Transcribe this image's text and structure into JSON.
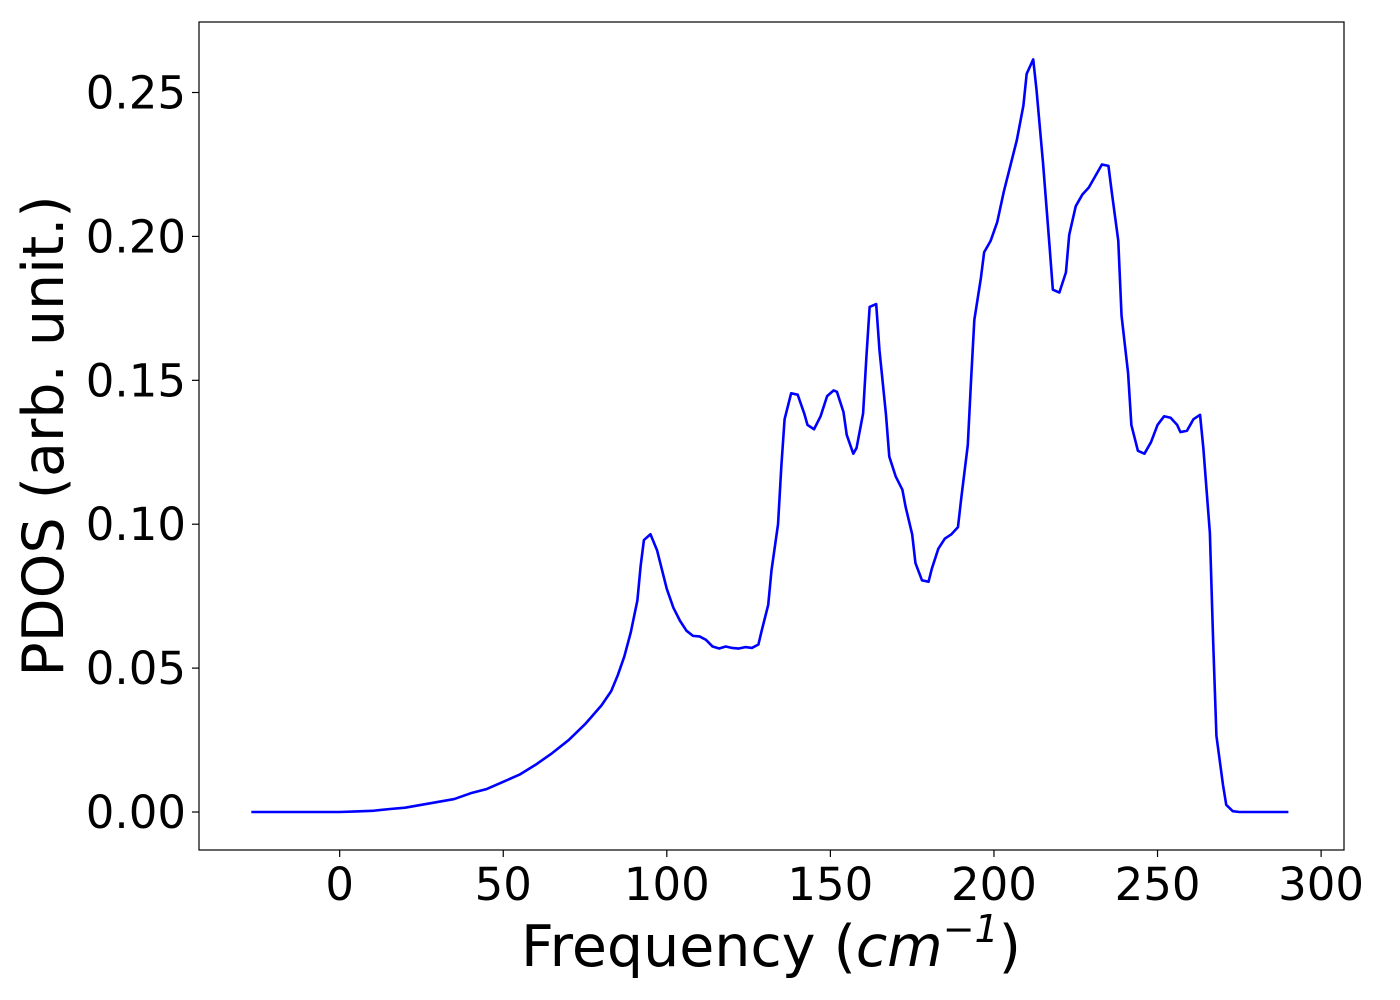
{
  "chart_data": {
    "type": "line",
    "xlabel": "Frequency (cm⁻¹)",
    "xlabel_parts": {
      "text": "Frequency (",
      "var": "cm",
      "exp": "−1",
      "close": ")"
    },
    "ylabel": "PDOS (arb. unit.)",
    "xlim": [
      -43,
      307
    ],
    "ylim": [
      -0.0132,
      0.2745
    ],
    "x_ticks": [
      0,
      50,
      100,
      150,
      200,
      250,
      300
    ],
    "x_tick_labels": [
      "0",
      "50",
      "100",
      "150",
      "200",
      "250",
      "300"
    ],
    "y_ticks": [
      0.0,
      0.05,
      0.1,
      0.15,
      0.2,
      0.25
    ],
    "y_tick_labels": [
      "0.00",
      "0.05",
      "0.10",
      "0.15",
      "0.20",
      "0.25"
    ],
    "grid": false,
    "series": [
      {
        "color": "#0000ff",
        "points": [
          [
            -27,
            0.0
          ],
          [
            -10,
            0.0
          ],
          [
            0,
            0.0
          ],
          [
            5,
            0.0002
          ],
          [
            10,
            0.0004
          ],
          [
            15,
            0.001
          ],
          [
            20,
            0.0015
          ],
          [
            25,
            0.0025
          ],
          [
            30,
            0.0035
          ],
          [
            35,
            0.0045
          ],
          [
            40,
            0.0065
          ],
          [
            45,
            0.008
          ],
          [
            50,
            0.0105
          ],
          [
            55,
            0.013
          ],
          [
            60,
            0.0165
          ],
          [
            65,
            0.0205
          ],
          [
            70,
            0.025
          ],
          [
            75,
            0.0305
          ],
          [
            80,
            0.037
          ],
          [
            83,
            0.042
          ],
          [
            85,
            0.0475
          ],
          [
            87,
            0.054
          ],
          [
            89,
            0.0625
          ],
          [
            91,
            0.0735
          ],
          [
            92,
            0.0855
          ],
          [
            93,
            0.0945
          ],
          [
            95,
            0.0965
          ],
          [
            97,
            0.091
          ],
          [
            100,
            0.0775
          ],
          [
            102,
            0.071
          ],
          [
            104,
            0.0665
          ],
          [
            106,
            0.063
          ],
          [
            108,
            0.0612
          ],
          [
            110,
            0.061
          ],
          [
            112,
            0.0598
          ],
          [
            114,
            0.0575
          ],
          [
            116,
            0.0568
          ],
          [
            118,
            0.0575
          ],
          [
            120,
            0.057
          ],
          [
            122,
            0.0568
          ],
          [
            124,
            0.0573
          ],
          [
            126,
            0.057
          ],
          [
            128,
            0.0582
          ],
          [
            129,
            0.063
          ],
          [
            131,
            0.072
          ],
          [
            132,
            0.084
          ],
          [
            134,
            0.1
          ],
          [
            135,
            0.12
          ],
          [
            136,
            0.1365
          ],
          [
            138,
            0.1455
          ],
          [
            140,
            0.145
          ],
          [
            142,
            0.1385
          ],
          [
            143,
            0.1345
          ],
          [
            145,
            0.133
          ],
          [
            147,
            0.1375
          ],
          [
            149,
            0.1445
          ],
          [
            151,
            0.1465
          ],
          [
            152,
            0.146
          ],
          [
            154,
            0.139
          ],
          [
            155,
            0.131
          ],
          [
            157,
            0.1245
          ],
          [
            158,
            0.1265
          ],
          [
            160,
            0.1385
          ],
          [
            161,
            0.158
          ],
          [
            162,
            0.1755
          ],
          [
            164,
            0.1765
          ],
          [
            165,
            0.1605
          ],
          [
            167,
            0.138
          ],
          [
            168,
            0.1235
          ],
          [
            170,
            0.1165
          ],
          [
            172,
            0.112
          ],
          [
            173,
            0.106
          ],
          [
            175,
            0.0965
          ],
          [
            176,
            0.0865
          ],
          [
            178,
            0.0805
          ],
          [
            180,
            0.08
          ],
          [
            181,
            0.0845
          ],
          [
            183,
            0.0915
          ],
          [
            185,
            0.095
          ],
          [
            187,
            0.0965
          ],
          [
            189,
            0.099
          ],
          [
            190,
            0.109
          ],
          [
            192,
            0.1275
          ],
          [
            193,
            0.15
          ],
          [
            194,
            0.171
          ],
          [
            196,
            0.1855
          ],
          [
            197,
            0.1945
          ],
          [
            199,
            0.1985
          ],
          [
            201,
            0.205
          ],
          [
            203,
            0.2155
          ],
          [
            205,
            0.2245
          ],
          [
            207,
            0.2335
          ],
          [
            209,
            0.2455
          ],
          [
            210,
            0.2565
          ],
          [
            212,
            0.2615
          ],
          [
            213,
            0.251
          ],
          [
            215,
            0.2255
          ],
          [
            217,
            0.1965
          ],
          [
            218,
            0.1815
          ],
          [
            220,
            0.1805
          ],
          [
            222,
            0.1875
          ],
          [
            223,
            0.2005
          ],
          [
            225,
            0.2105
          ],
          [
            227,
            0.2145
          ],
          [
            229,
            0.217
          ],
          [
            231,
            0.221
          ],
          [
            233,
            0.225
          ],
          [
            235,
            0.2245
          ],
          [
            236,
            0.2155
          ],
          [
            238,
            0.1985
          ],
          [
            239,
            0.1725
          ],
          [
            241,
            0.1525
          ],
          [
            242,
            0.1345
          ],
          [
            244,
            0.1255
          ],
          [
            246,
            0.1245
          ],
          [
            248,
            0.1285
          ],
          [
            250,
            0.1345
          ],
          [
            252,
            0.1375
          ],
          [
            254,
            0.137
          ],
          [
            256,
            0.1345
          ],
          [
            257,
            0.132
          ],
          [
            259,
            0.1325
          ],
          [
            261,
            0.1365
          ],
          [
            263,
            0.138
          ],
          [
            264,
            0.1265
          ],
          [
            266,
            0.097
          ],
          [
            267,
            0.0595
          ],
          [
            268,
            0.0265
          ],
          [
            270,
            0.0095
          ],
          [
            271,
            0.0025
          ],
          [
            273,
            0.0003
          ],
          [
            275,
            0.0
          ],
          [
            290,
            0.0
          ]
        ]
      }
    ]
  }
}
